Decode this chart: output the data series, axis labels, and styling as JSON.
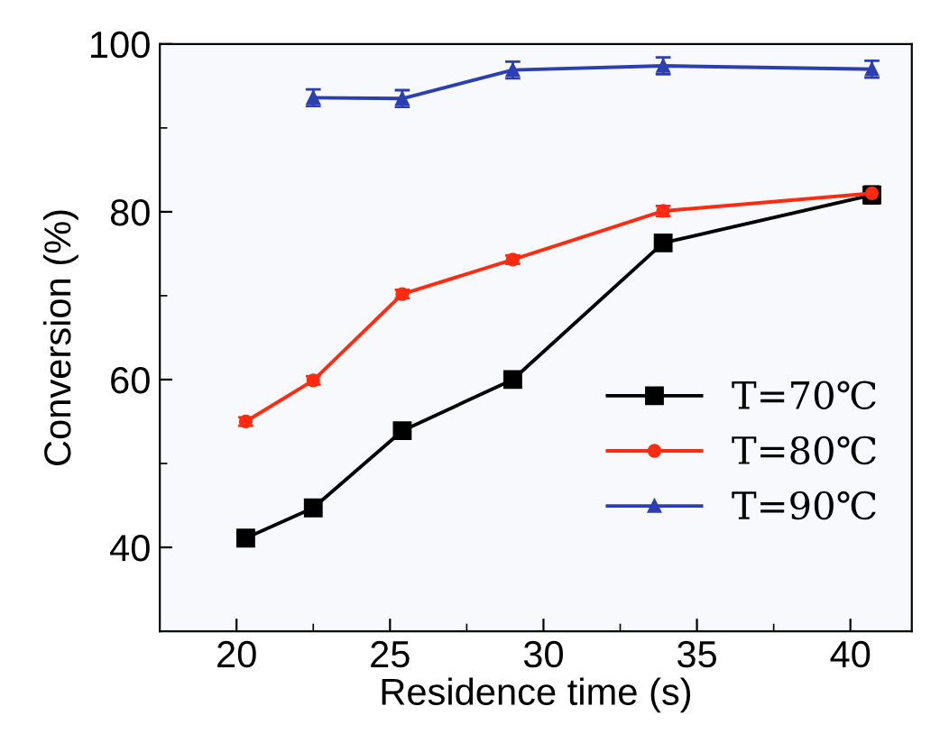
{
  "chart_data": {
    "type": "line",
    "xlabel": "Residence time (s)",
    "ylabel": "Conversion (%)",
    "xlim": [
      17.5,
      42
    ],
    "xticks": [
      20,
      25,
      30,
      35,
      40
    ],
    "ylim": [
      30,
      100
    ],
    "yticks": [
      40,
      60,
      80,
      100
    ],
    "grid": false,
    "legend": "bottom right",
    "line_style": "solid",
    "series": [
      {
        "name": "T=70℃",
        "color": "#000000",
        "marker": "square",
        "x": [
          20.3,
          22.5,
          25.4,
          29.0,
          33.9,
          40.7
        ],
        "values": [
          41.1,
          44.7,
          53.9,
          60.0,
          76.3,
          82.0
        ],
        "errors": [
          0.5,
          0.5,
          0.5,
          0.5,
          0.8,
          1.0
        ]
      },
      {
        "name": "T=80℃",
        "color": "#ff2a10",
        "marker": "circle",
        "x": [
          20.3,
          22.5,
          25.4,
          29.0,
          33.9,
          40.7
        ],
        "values": [
          55.0,
          59.9,
          70.2,
          74.3,
          80.1,
          82.2
        ],
        "errors": [
          0.5,
          0.5,
          0.5,
          0.5,
          0.6,
          0.6
        ]
      },
      {
        "name": "T=90℃",
        "color": "#2c3fb0",
        "marker": "triangle",
        "x": [
          22.5,
          25.4,
          29.0,
          33.9,
          40.7
        ],
        "values": [
          93.6,
          93.5,
          96.9,
          97.4,
          97.0
        ],
        "errors": [
          1.0,
          1.0,
          1.0,
          1.0,
          1.0
        ]
      }
    ]
  }
}
